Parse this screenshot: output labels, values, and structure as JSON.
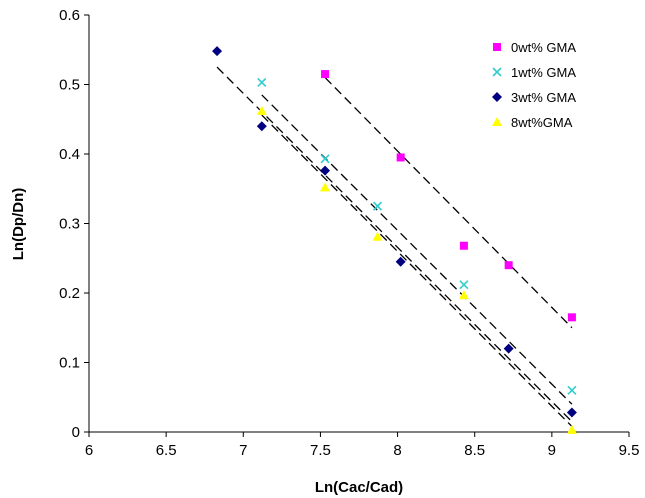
{
  "chart_data": {
    "type": "scatter",
    "title": "",
    "xlabel": "Ln(Cac/Cad)",
    "ylabel": "Ln(Dp/Dn)",
    "xlim": [
      6,
      9.5
    ],
    "ylim": [
      0,
      0.6
    ],
    "xticks": [
      "6",
      "6.5",
      "7",
      "7.5",
      "8",
      "8.5",
      "9",
      "9.5"
    ],
    "yticks": [
      "0",
      "0.1",
      "0.2",
      "0.3",
      "0.4",
      "0.5",
      "0.6"
    ],
    "grid": false,
    "legend_position": "top-right",
    "series": [
      {
        "name": "0wt% GMA",
        "marker": "square",
        "color": "#ff00ff",
        "points": [
          [
            7.53,
            0.515
          ],
          [
            8.02,
            0.395
          ],
          [
            8.43,
            0.268
          ],
          [
            8.72,
            0.24
          ],
          [
            9.13,
            0.165
          ]
        ],
        "trendline": [
          [
            7.53,
            0.51
          ],
          [
            9.13,
            0.15
          ]
        ]
      },
      {
        "name": "1wt% GMA",
        "marker": "x",
        "color": "#33cccc",
        "points": [
          [
            7.12,
            0.503
          ],
          [
            7.53,
            0.393
          ],
          [
            7.87,
            0.325
          ],
          [
            8.43,
            0.212
          ],
          [
            9.13,
            0.06
          ]
        ],
        "trendline": [
          [
            7.12,
            0.485
          ],
          [
            9.13,
            0.04
          ]
        ]
      },
      {
        "name": "3wt% GMA",
        "marker": "diamond",
        "color": "#000080",
        "points": [
          [
            6.83,
            0.548
          ],
          [
            7.12,
            0.44
          ],
          [
            7.53,
            0.376
          ],
          [
            8.02,
            0.245
          ],
          [
            8.72,
            0.12
          ],
          [
            9.13,
            0.028
          ]
        ],
        "trendline": [
          [
            6.83,
            0.525
          ],
          [
            9.13,
            0.015
          ]
        ]
      },
      {
        "name": "8wt%GMA",
        "marker": "triangle",
        "color": "#ffff00",
        "points": [
          [
            7.12,
            0.462
          ],
          [
            7.53,
            0.352
          ],
          [
            7.87,
            0.281
          ],
          [
            8.43,
            0.197
          ],
          [
            9.13,
            0.003
          ]
        ],
        "trendline": [
          [
            7.12,
            0.456
          ],
          [
            9.13,
            0.008
          ]
        ]
      }
    ]
  }
}
